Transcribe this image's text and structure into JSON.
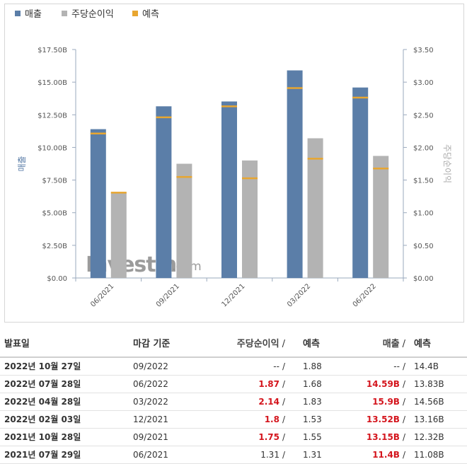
{
  "legend": [
    {
      "label": "매출",
      "color": "#5b7ea8"
    },
    {
      "label": "주당순이익",
      "color": "#b3b3b3"
    },
    {
      "label": "예측",
      "color": "#e8a630"
    }
  ],
  "watermark": {
    "brand": "Investing",
    "suffix": ".com"
  },
  "chart_data": {
    "type": "bar",
    "categories": [
      "06/2021",
      "09/2021",
      "12/2021",
      "03/2022",
      "06/2022"
    ],
    "series": [
      {
        "name": "매출",
        "axis": "left",
        "color": "#5b7ea8",
        "values": [
          11.4,
          13.15,
          13.52,
          15.9,
          14.59
        ]
      },
      {
        "name": "주당순이익",
        "axis": "right",
        "color": "#b3b3b3",
        "values": [
          1.31,
          1.75,
          1.8,
          2.14,
          1.87
        ]
      }
    ],
    "forecasts": [
      {
        "series": "매출",
        "color": "#e8a630",
        "values": [
          11.08,
          12.32,
          13.16,
          14.56,
          13.83
        ]
      },
      {
        "series": "주당순이익",
        "color": "#e8a630",
        "values": [
          1.31,
          1.55,
          1.53,
          1.83,
          1.68
        ]
      }
    ],
    "ylabel": "매출",
    "y2label": "주당순이익",
    "ylim": [
      0,
      17.5
    ],
    "y2lim": [
      0,
      3.5
    ],
    "yticks": [
      "$0.00",
      "$2.50B",
      "$5.00B",
      "$7.50B",
      "$10.00B",
      "$12.50B",
      "$15.00B",
      "$17.50B"
    ],
    "y2ticks": [
      "$0.00",
      "$0.50",
      "$1.00",
      "$1.50",
      "$2.00",
      "$2.50",
      "$3.00",
      "$3.50"
    ],
    "legend_position": "top-left",
    "grid": false
  },
  "table": {
    "headers": {
      "date": "발표일",
      "period": "마감 기준",
      "eps": "주당순이익",
      "eps_forecast": "예측",
      "revenue": "매출",
      "revenue_forecast": "예측",
      "slash": "/"
    },
    "rows": [
      {
        "date": "2022년 10월 27일",
        "period": "09/2022",
        "eps": "--",
        "eps_red": false,
        "eps_forecast": "1.88",
        "revenue": "--",
        "rev_red": false,
        "revenue_forecast": "14.4B"
      },
      {
        "date": "2022년 07월 28일",
        "period": "06/2022",
        "eps": "1.87",
        "eps_red": true,
        "eps_forecast": "1.68",
        "revenue": "14.59B",
        "rev_red": true,
        "revenue_forecast": "13.83B"
      },
      {
        "date": "2022년 04월 28일",
        "period": "03/2022",
        "eps": "2.14",
        "eps_red": true,
        "eps_forecast": "1.83",
        "revenue": "15.9B",
        "rev_red": true,
        "revenue_forecast": "14.56B"
      },
      {
        "date": "2022년 02월 03일",
        "period": "12/2021",
        "eps": "1.8",
        "eps_red": true,
        "eps_forecast": "1.53",
        "revenue": "13.52B",
        "rev_red": true,
        "revenue_forecast": "13.16B"
      },
      {
        "date": "2021년 10월 28일",
        "period": "09/2021",
        "eps": "1.75",
        "eps_red": true,
        "eps_forecast": "1.55",
        "revenue": "13.15B",
        "rev_red": true,
        "revenue_forecast": "12.32B"
      },
      {
        "date": "2021년 07월 29일",
        "period": "06/2021",
        "eps": "1.31",
        "eps_red": false,
        "eps_forecast": "1.31",
        "revenue": "11.4B",
        "rev_red": true,
        "revenue_forecast": "11.08B"
      }
    ]
  }
}
